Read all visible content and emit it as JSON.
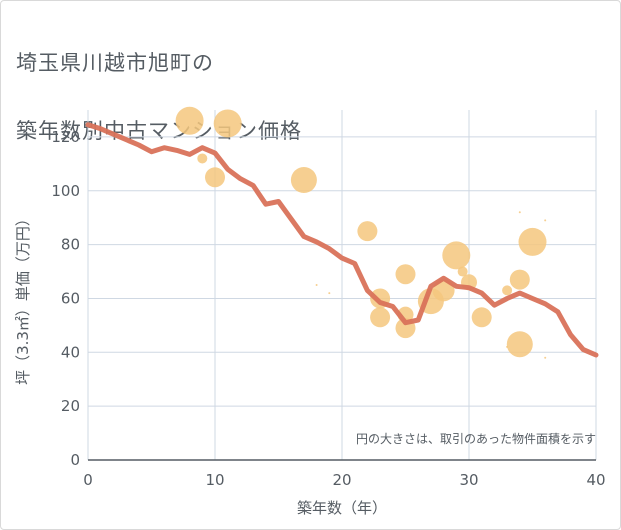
{
  "title_lines": [
    "埼玉県川越市旭町の",
    "築年数別中古マンション価格"
  ],
  "chart_data": {
    "type": "scatter",
    "xlabel": "築年数（年）",
    "ylabel": "坪（3.3㎡）単価（万円）",
    "note": "円の大きさは、取引のあった物件面積を示す",
    "xlim": [
      0,
      40
    ],
    "ylim": [
      0,
      130
    ],
    "xticks": [
      0,
      10,
      20,
      30,
      40
    ],
    "yticks": [
      0,
      20,
      40,
      60,
      80,
      100,
      120
    ],
    "grid": true,
    "colors": {
      "bubble": "#f5c77e",
      "line": "#d9725a",
      "grid": "#cfd8e3",
      "text": "#555c63"
    },
    "points": [
      {
        "x": 8,
        "y": 126,
        "size": 14
      },
      {
        "x": 9,
        "y": 112,
        "size": 5
      },
      {
        "x": 10,
        "y": 105,
        "size": 10
      },
      {
        "x": 11,
        "y": 125,
        "size": 14
      },
      {
        "x": 17,
        "y": 104,
        "size": 13
      },
      {
        "x": 18,
        "y": 65,
        "size": 1
      },
      {
        "x": 19,
        "y": 62,
        "size": 1
      },
      {
        "x": 22,
        "y": 85,
        "size": 10
      },
      {
        "x": 23,
        "y": 60,
        "size": 10
      },
      {
        "x": 23,
        "y": 53,
        "size": 10
      },
      {
        "x": 25,
        "y": 69,
        "size": 10
      },
      {
        "x": 25,
        "y": 54,
        "size": 8
      },
      {
        "x": 25,
        "y": 49,
        "size": 10
      },
      {
        "x": 27,
        "y": 59,
        "size": 13
      },
      {
        "x": 28,
        "y": 63,
        "size": 11
      },
      {
        "x": 29,
        "y": 76,
        "size": 14
      },
      {
        "x": 29.5,
        "y": 70,
        "size": 5
      },
      {
        "x": 30,
        "y": 66,
        "size": 8
      },
      {
        "x": 31,
        "y": 53,
        "size": 10
      },
      {
        "x": 33,
        "y": 63,
        "size": 5
      },
      {
        "x": 33,
        "y": 42,
        "size": 1
      },
      {
        "x": 34,
        "y": 92,
        "size": 1
      },
      {
        "x": 34,
        "y": 67,
        "size": 10
      },
      {
        "x": 34,
        "y": 43,
        "size": 13
      },
      {
        "x": 35,
        "y": 81,
        "size": 14
      },
      {
        "x": 36,
        "y": 89,
        "size": 1
      },
      {
        "x": 36,
        "y": 38,
        "size": 1
      }
    ],
    "series": [
      {
        "values": [
          [
            0,
            124.5
          ],
          [
            1,
            123
          ],
          [
            2,
            121
          ],
          [
            3,
            119
          ],
          [
            4,
            117
          ],
          [
            5,
            114.5
          ],
          [
            6,
            116
          ],
          [
            7,
            115
          ],
          [
            8,
            113.5
          ],
          [
            9,
            116
          ],
          [
            10,
            114
          ],
          [
            11,
            108
          ],
          [
            12,
            104.5
          ],
          [
            13,
            102
          ],
          [
            14,
            95
          ],
          [
            15,
            96
          ],
          [
            16,
            89.5
          ],
          [
            17,
            83
          ],
          [
            18,
            81
          ],
          [
            19,
            78.5
          ],
          [
            20,
            75
          ],
          [
            21,
            73
          ],
          [
            22,
            63
          ],
          [
            23,
            58.5
          ],
          [
            24,
            57
          ],
          [
            25,
            51
          ],
          [
            26,
            52
          ],
          [
            27,
            64.5
          ],
          [
            28,
            67.5
          ],
          [
            29,
            64.5
          ],
          [
            30,
            64
          ],
          [
            31,
            62
          ],
          [
            32,
            57.5
          ],
          [
            33,
            60
          ],
          [
            34,
            62
          ],
          [
            35,
            60
          ],
          [
            36,
            58
          ],
          [
            37,
            55
          ],
          [
            38,
            46.5
          ],
          [
            39,
            41
          ],
          [
            40,
            39
          ]
        ]
      }
    ]
  }
}
